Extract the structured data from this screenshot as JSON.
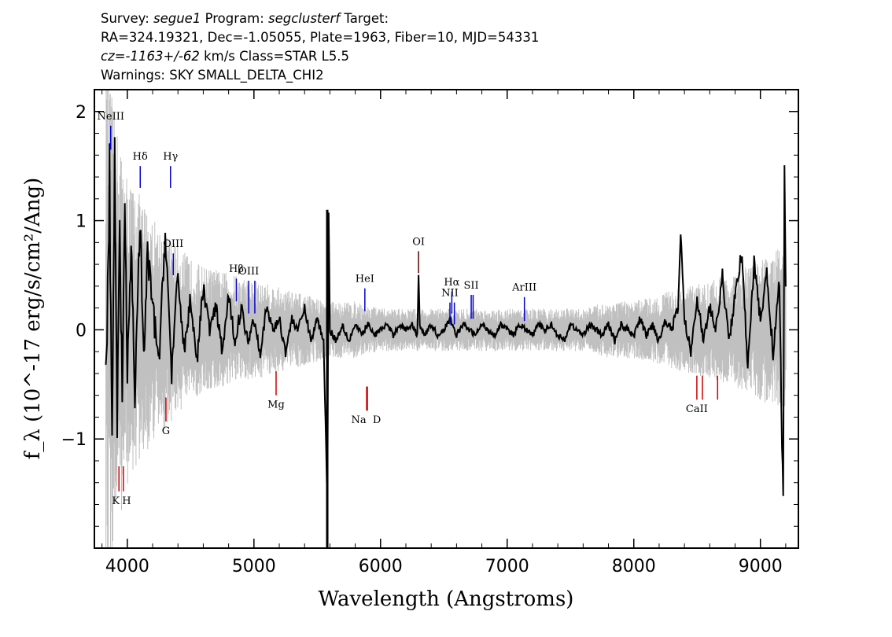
{
  "header": {
    "line1": {
      "survey_prefix": "Survey: ",
      "survey": "segue1",
      "program_prefix": " Program: ",
      "program": "segclusterf",
      "target": " Target:"
    },
    "line2": "RA=324.19321, Dec=-1.05055, Plate=1963, Fiber=10, MJD=54331",
    "line3": {
      "cz": "cz=-1163+/-62",
      "rest": " km/s Class=STAR L5.5"
    },
    "line4": "Warnings: SKY SMALL_DELTA_CHI2"
  },
  "chart_data": {
    "type": "line",
    "xlabel": "Wavelength (Angstroms)",
    "ylabel": "f_λ (10^-17 erg/s/cm²/Ang)",
    "xlim": [
      3740,
      9300
    ],
    "ylim": [
      -2.0,
      2.2
    ],
    "xticks": [
      4000,
      5000,
      6000,
      7000,
      8000,
      9000
    ],
    "yticks": [
      -1,
      0,
      1,
      2
    ],
    "colors": {
      "flux": "#000000",
      "error": "#c0c0c0",
      "emission": "#0000cc",
      "absorption": "#cc0000"
    },
    "series": [
      {
        "role": "error envelope (grey)",
        "x": [
          3830,
          3900,
          4000,
          4100,
          4200,
          4300,
          4400,
          4500,
          4600,
          4800,
          5000,
          5200,
          5400,
          5600,
          5800,
          6000,
          6200,
          6400,
          6600,
          6800,
          7000,
          7200,
          7400,
          7600,
          7800,
          8000,
          8200,
          8400,
          8600,
          8800,
          9000,
          9200
        ],
        "upper": [
          2.0,
          1.5,
          1.1,
          0.95,
          0.8,
          0.7,
          0.6,
          0.5,
          0.45,
          0.4,
          0.35,
          0.3,
          0.25,
          0.2,
          0.2,
          0.15,
          0.15,
          0.15,
          0.15,
          0.15,
          0.15,
          0.15,
          0.15,
          0.15,
          0.2,
          0.2,
          0.25,
          0.3,
          0.35,
          0.4,
          0.5,
          0.6
        ],
        "lower": [
          -2.0,
          -1.5,
          -1.1,
          -0.95,
          -0.8,
          -0.7,
          -0.6,
          -0.5,
          -0.45,
          -0.4,
          -0.35,
          -0.3,
          -0.25,
          -0.2,
          -0.2,
          -0.15,
          -0.15,
          -0.15,
          -0.15,
          -0.15,
          -0.15,
          -0.15,
          -0.15,
          -0.15,
          -0.2,
          -0.2,
          -0.25,
          -0.3,
          -0.35,
          -0.4,
          -0.5,
          -0.6
        ]
      },
      {
        "role": "flux (black)",
        "x": [
          3830,
          3860,
          3880,
          3900,
          3920,
          3940,
          3960,
          3980,
          4000,
          4030,
          4060,
          4100,
          4130,
          4160,
          4200,
          4250,
          4300,
          4350,
          4400,
          4450,
          4500,
          4550,
          4600,
          4650,
          4700,
          4750,
          4800,
          4850,
          4900,
          4950,
          5000,
          5050,
          5100,
          5150,
          5200,
          5250,
          5300,
          5350,
          5400,
          5450,
          5500,
          5550,
          5580,
          5590,
          5600,
          5650,
          5700,
          5750,
          5800,
          5850,
          5900,
          5950,
          6000,
          6050,
          6100,
          6150,
          6200,
          6250,
          6290,
          6300,
          6310,
          6350,
          6400,
          6450,
          6500,
          6550,
          6600,
          6650,
          6700,
          6750,
          6800,
          6850,
          6900,
          6950,
          7000,
          7050,
          7100,
          7150,
          7200,
          7250,
          7300,
          7350,
          7400,
          7450,
          7500,
          7550,
          7600,
          7650,
          7700,
          7750,
          7800,
          7850,
          7900,
          7950,
          8000,
          8050,
          8100,
          8150,
          8200,
          8250,
          8300,
          8350,
          8370,
          8400,
          8450,
          8500,
          8550,
          8600,
          8650,
          8700,
          8750,
          8800,
          8850,
          8900,
          8950,
          9000,
          9050,
          9100,
          9150,
          9170,
          9180,
          9190,
          9200
        ],
        "y": [
          -0.4,
          1.4,
          -1.2,
          1.6,
          -0.9,
          0.9,
          -0.6,
          1.2,
          -0.5,
          0.8,
          -0.6,
          1.0,
          -0.3,
          0.7,
          0.2,
          -0.3,
          0.9,
          -0.4,
          0.5,
          -0.2,
          0.3,
          -0.3,
          0.4,
          0.0,
          0.2,
          -0.2,
          0.3,
          -0.1,
          0.2,
          -0.1,
          0.1,
          -0.2,
          0.2,
          0.0,
          0.1,
          -0.2,
          0.1,
          0.0,
          0.2,
          -0.1,
          0.1,
          -0.1,
          -1.6,
          1.1,
          0.0,
          -0.1,
          0.05,
          -0.1,
          0.05,
          -0.05,
          0.05,
          -0.05,
          0.0,
          0.05,
          -0.05,
          0.05,
          0.0,
          0.05,
          -0.05,
          0.5,
          0.05,
          -0.05,
          0.05,
          -0.05,
          0.0,
          0.1,
          -0.05,
          0.05,
          0.0,
          -0.05,
          0.05,
          0.0,
          -0.05,
          0.05,
          0.0,
          -0.05,
          0.05,
          0.0,
          -0.05,
          0.05,
          0.0,
          0.05,
          -0.05,
          -0.1,
          0.05,
          0.0,
          -0.05,
          0.05,
          0.0,
          -0.05,
          0.05,
          -0.1,
          0.05,
          0.0,
          -0.05,
          0.1,
          -0.05,
          0.05,
          -0.1,
          0.1,
          0.0,
          0.2,
          0.9,
          0.1,
          -0.2,
          0.3,
          -0.1,
          0.2,
          0.0,
          0.5,
          -0.1,
          0.3,
          0.7,
          -0.3,
          0.6,
          0.1,
          0.5,
          -0.2,
          0.4,
          -1.0,
          -1.5,
          1.5,
          0.3
        ]
      }
    ],
    "emission_lines": [
      {
        "label": "NeIII",
        "x": 3869
      },
      {
        "label": "Hδ",
        "x": 4102
      },
      {
        "label": "Hγ",
        "x": 4341
      },
      {
        "label": "OIII",
        "x": 4363
      },
      {
        "label": "Hβ",
        "x": 4861
      },
      {
        "label": "OIII",
        "x": 4959
      },
      {
        "label": "OIII",
        "x": 5007
      },
      {
        "label": "HeI",
        "x": 5876
      },
      {
        "label": "OI",
        "x": 6300
      },
      {
        "label": "NII",
        "x": 6548
      },
      {
        "label": "Hα",
        "x": 6563
      },
      {
        "label": "NII",
        "x": 6583
      },
      {
        "label": "SII",
        "x": 6716
      },
      {
        "label": "SII",
        "x": 6731
      },
      {
        "label": "ArIII",
        "x": 7136
      }
    ],
    "absorption_lines": [
      {
        "label": "K",
        "x": 3934
      },
      {
        "label": "H",
        "x": 3969
      },
      {
        "label": "G",
        "x": 4305
      },
      {
        "label": "Mg",
        "x": 5175
      },
      {
        "label": "Na",
        "x": 5890
      },
      {
        "label": "D",
        "x": 5896
      },
      {
        "label": "CaII",
        "x": 8498
      },
      {
        "label": "CaII",
        "x": 8542
      },
      {
        "label": "CaII",
        "x": 8662
      }
    ]
  }
}
